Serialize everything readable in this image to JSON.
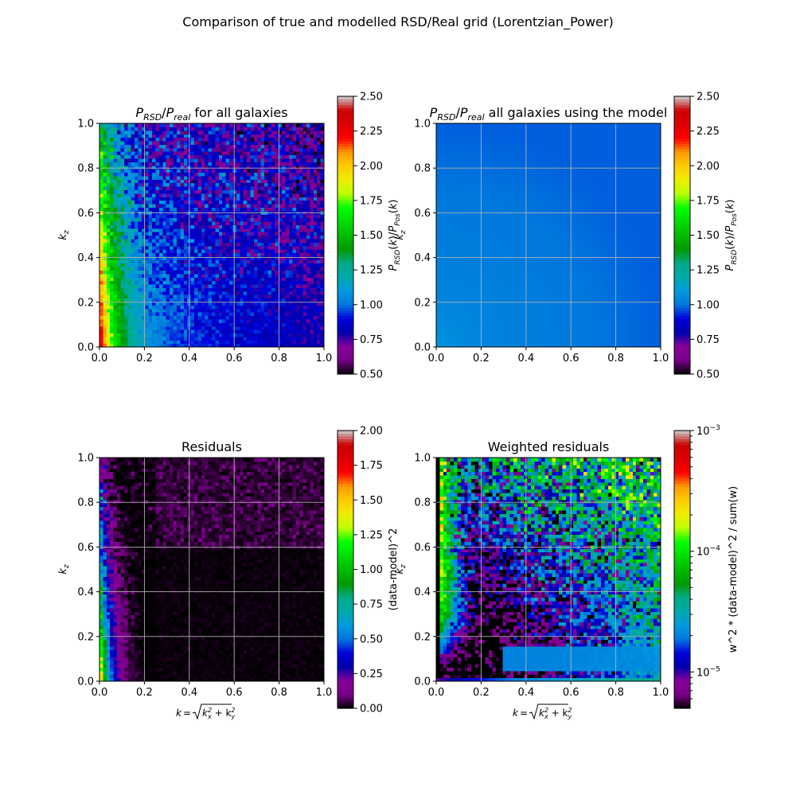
{
  "figure": {
    "suptitle": "Comparison of true and modelled RSD/Real grid (Lorentzian_Power)"
  },
  "chart_data": [
    {
      "type": "heatmap",
      "title_html": "P<tspan baseline-shift='sub' font-size='11' font-style='italic'>RSD</tspan>/P<tspan baseline-shift='sub' font-size='11' font-style='italic'>real</tspan> for all galaxies",
      "title": "P_RSD/P_real for all galaxies",
      "xlabel": "",
      "ylabel": "k_z",
      "xlim": [
        0.0,
        1.0
      ],
      "ylim": [
        0.0,
        1.0
      ],
      "xticks": [
        "0.0",
        "0.2",
        "0.4",
        "0.6",
        "0.8",
        "1.0"
      ],
      "yticks": [
        "0.0",
        "0.2",
        "0.4",
        "0.6",
        "0.8",
        "1.0"
      ],
      "grid": true,
      "colorbar": {
        "label": "P_RSD(k)/P_Pos(k)",
        "scale": "linear",
        "range": [
          0.5,
          2.5
        ],
        "ticks": [
          "0.50",
          "0.75",
          "1.00",
          "1.25",
          "1.50",
          "1.75",
          "2.00",
          "2.25",
          "2.50"
        ],
        "colormap": "nipy_spectral"
      },
      "description_of_field": "ratio ~2.3 near k=0 small kz, ~1.7 band along low k, falling to ~1.0 at high k, noisy",
      "field": "data_ratio"
    },
    {
      "type": "heatmap",
      "title": "P_RSD/P_real all galaxies using the model",
      "xlabel": "",
      "ylabel": "k_z",
      "xlim": [
        0.0,
        1.0
      ],
      "ylim": [
        0.0,
        1.0
      ],
      "xticks": [
        "0.0",
        "0.2",
        "0.4",
        "0.6",
        "0.8",
        "1.0"
      ],
      "yticks": [
        "0.0",
        "0.2",
        "0.4",
        "0.6",
        "0.8",
        "1.0"
      ],
      "grid": true,
      "colorbar": {
        "label": "P_RSD(k)/P_Pos(k)",
        "scale": "linear",
        "range": [
          0.5,
          2.5
        ],
        "ticks": [
          "0.50",
          "0.75",
          "1.00",
          "1.25",
          "1.50",
          "1.75",
          "2.00",
          "2.25",
          "2.50"
        ],
        "colormap": "nipy_spectral"
      },
      "field": "model_ratio"
    },
    {
      "type": "heatmap",
      "title": "Residuals",
      "xlabel": "k = sqrt(k_x^2 + k_y^2)",
      "ylabel": "k_z",
      "xlim": [
        0.0,
        1.0
      ],
      "ylim": [
        0.0,
        1.0
      ],
      "xticks": [
        "0.0",
        "0.2",
        "0.4",
        "0.6",
        "0.8",
        "1.0"
      ],
      "yticks": [
        "0.0",
        "0.2",
        "0.4",
        "0.6",
        "0.8",
        "1.0"
      ],
      "grid": true,
      "colorbar": {
        "label": "(data-model)^2",
        "scale": "linear",
        "range": [
          0.0,
          2.0
        ],
        "ticks": [
          "0.00",
          "0.25",
          "0.50",
          "0.75",
          "1.00",
          "1.25",
          "1.50",
          "1.75",
          "2.00"
        ],
        "colormap": "nipy_spectral"
      },
      "field": "residuals"
    },
    {
      "type": "heatmap",
      "title": "Weighted residuals",
      "xlabel": "k = sqrt(k_x^2 + k_y^2)",
      "ylabel": "k_z",
      "xlim": [
        0.0,
        1.0
      ],
      "ylim": [
        0.0,
        1.0
      ],
      "xticks": [
        "0.0",
        "0.2",
        "0.4",
        "0.6",
        "0.8",
        "1.0"
      ],
      "yticks": [
        "0.0",
        "0.2",
        "0.4",
        "0.6",
        "0.8",
        "1.0"
      ],
      "grid": true,
      "colorbar": {
        "label": "w^2 * (data-model)^2 / sum(w)",
        "scale": "log",
        "range": [
          5e-06,
          0.001
        ],
        "ticks": [
          "10^-5",
          "10^-4",
          "10^-3"
        ],
        "colormap": "nipy_spectral"
      },
      "field": "weighted_residuals"
    }
  ],
  "colors": {
    "grid": "#b0b0b0",
    "axes": "#000000",
    "background": "#ffffff"
  }
}
